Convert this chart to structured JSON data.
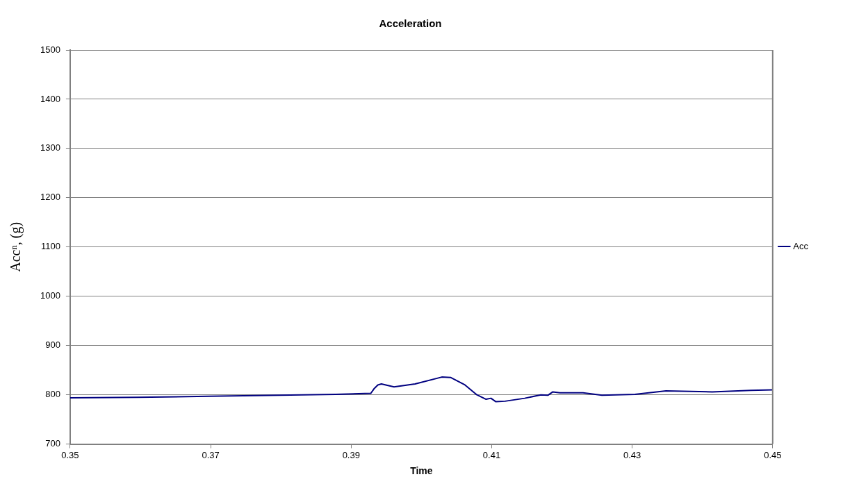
{
  "chart_data": {
    "type": "line",
    "title": "Acceleration",
    "xlabel": "Time",
    "ylabel": "Accⁿ, (g)",
    "x": [
      0.35,
      0.3596,
      0.3696,
      0.3797,
      0.3878,
      0.3928,
      0.3933,
      0.3938,
      0.3943,
      0.3961,
      0.3991,
      0.4029,
      0.4042,
      0.4062,
      0.4079,
      0.4092,
      0.4099,
      0.4106,
      0.4119,
      0.4147,
      0.417,
      0.418,
      0.4187,
      0.4197,
      0.423,
      0.4257,
      0.4304,
      0.4348,
      0.4414,
      0.4469,
      0.45
    ],
    "series": [
      {
        "name": "Acc",
        "color": "#000080",
        "values": [
          794,
          795,
          797,
          799,
          801,
          803,
          813,
          820,
          822,
          816,
          822,
          836,
          835,
          820,
          800,
          791,
          793,
          786,
          787,
          793,
          800,
          799,
          806,
          804,
          804,
          799,
          801,
          808,
          806,
          809,
          810
        ]
      }
    ],
    "xlim": [
      0.35,
      0.45
    ],
    "xticks": [
      0.35,
      0.37,
      0.39,
      0.41,
      0.43,
      0.45
    ],
    "ylim": [
      700,
      1500
    ],
    "yticks": [
      700,
      800,
      900,
      1000,
      1100,
      1200,
      1300,
      1400,
      1500
    ],
    "grid": "y",
    "legend": "right",
    "marker": "none",
    "line_style": "solid"
  }
}
